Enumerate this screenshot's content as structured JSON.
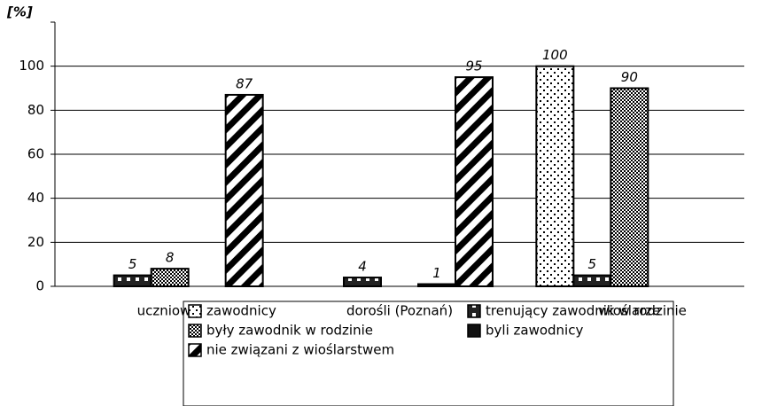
{
  "chart_data": {
    "type": "bar",
    "y_label": "[%]",
    "categories": [
      "uczniowie",
      "dorośli (Poznań)",
      "wioślarze"
    ],
    "series": [
      {
        "name": "zawodnicy",
        "pattern": "dots",
        "values": [
          null,
          null,
          100
        ]
      },
      {
        "name": "trenujący zawodnik w rodzinie",
        "pattern": "squares",
        "values": [
          5,
          4,
          5
        ]
      },
      {
        "name": "były zawodnik w rodzinie",
        "pattern": "checker",
        "values": [
          8,
          null,
          90
        ]
      },
      {
        "name": "byli zawodnicy",
        "pattern": "solid",
        "values": [
          null,
          1,
          null
        ]
      },
      {
        "name": "nie związani z wioślarstwem",
        "pattern": "stripes",
        "values": [
          87,
          95,
          null
        ]
      }
    ],
    "ylim": [
      0,
      120
    ],
    "yticks": [
      0,
      20,
      40,
      60,
      80,
      100
    ],
    "grid": true
  }
}
